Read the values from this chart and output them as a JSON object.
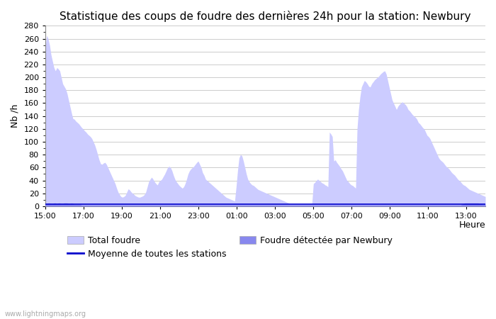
{
  "title": "Statistique des coups de foudre des dernières 24h pour la station: Newbury",
  "ylabel": "Nb /h",
  "xlabel": "Heure",
  "watermark": "www.lightningmaps.org",
  "ylim": [
    0,
    280
  ],
  "yticks": [
    0,
    20,
    40,
    60,
    80,
    100,
    120,
    140,
    160,
    180,
    200,
    220,
    240,
    260,
    280
  ],
  "xtick_labels": [
    "15:00",
    "17:00",
    "19:00",
    "21:00",
    "23:00",
    "01:00",
    "03:00",
    "05:00",
    "07:00",
    "09:00",
    "11:00",
    "13:00"
  ],
  "total_foudre_color": "#ccccff",
  "newbury_color": "#8888ee",
  "moyenne_color": "#0000cc",
  "background_color": "#ffffff",
  "grid_color": "#cccccc",
  "title_fontsize": 11,
  "axis_fontsize": 9,
  "tick_fontsize": 8,
  "legend_fontsize": 9,
  "total_foudre": [
    245,
    265,
    260,
    250,
    235,
    225,
    215,
    210,
    215,
    213,
    210,
    200,
    190,
    186,
    182,
    175,
    165,
    155,
    145,
    136,
    135,
    132,
    130,
    128,
    125,
    122,
    120,
    117,
    115,
    112,
    110,
    108,
    105,
    100,
    95,
    88,
    80,
    72,
    66,
    65,
    67,
    68,
    65,
    60,
    55,
    50,
    45,
    40,
    35,
    28,
    22,
    18,
    15,
    14,
    15,
    17,
    22,
    27,
    25,
    22,
    20,
    18,
    16,
    15,
    14,
    14,
    15,
    16,
    18,
    22,
    30,
    38,
    42,
    45,
    42,
    38,
    35,
    33,
    38,
    40,
    42,
    46,
    50,
    55,
    60,
    62,
    60,
    55,
    48,
    42,
    38,
    35,
    32,
    30,
    28,
    30,
    35,
    42,
    50,
    55,
    58,
    60,
    62,
    65,
    68,
    70,
    65,
    60,
    52,
    48,
    42,
    40,
    38,
    36,
    34,
    32,
    30,
    28,
    26,
    24,
    22,
    20,
    18,
    16,
    14,
    13,
    12,
    11,
    10,
    9,
    8,
    30,
    55,
    75,
    80,
    78,
    70,
    60,
    50,
    42,
    38,
    35,
    33,
    32,
    30,
    28,
    26,
    25,
    24,
    23,
    22,
    21,
    20,
    19,
    18,
    17,
    16,
    15,
    14,
    13,
    12,
    11,
    10,
    9,
    8,
    7,
    6,
    5,
    4,
    4,
    4,
    4,
    4,
    4,
    4,
    4,
    4,
    4,
    4,
    4,
    4,
    4,
    4,
    4,
    35,
    37,
    40,
    42,
    40,
    38,
    36,
    35,
    33,
    32,
    30,
    115,
    112,
    108,
    70,
    72,
    68,
    65,
    62,
    58,
    55,
    50,
    45,
    40,
    38,
    35,
    33,
    32,
    30,
    28,
    120,
    150,
    170,
    185,
    190,
    195,
    193,
    190,
    186,
    185,
    190,
    193,
    196,
    198,
    200,
    202,
    205,
    207,
    209,
    210,
    205,
    195,
    185,
    175,
    165,
    160,
    155,
    150,
    155,
    158,
    160,
    162,
    160,
    158,
    155,
    150,
    148,
    145,
    142,
    140,
    138,
    135,
    130,
    128,
    125,
    122,
    120,
    115,
    110,
    108,
    105,
    100,
    95,
    90,
    85,
    80,
    75,
    72,
    70,
    68,
    65,
    62,
    60,
    58,
    55,
    52,
    50,
    48,
    45,
    42,
    40,
    38,
    35,
    33,
    32,
    30,
    28,
    26,
    25,
    24,
    23,
    22,
    21,
    20,
    19,
    18,
    17,
    16,
    15
  ],
  "newbury_foudre": [
    3,
    4,
    5,
    5,
    4,
    4,
    5,
    5,
    4,
    5,
    5,
    4,
    4,
    5,
    5,
    5,
    4,
    4,
    5,
    4,
    3,
    3,
    3,
    3,
    3,
    2,
    2,
    2,
    2,
    2,
    2,
    2,
    2,
    2,
    2,
    2,
    2,
    2,
    2,
    2,
    2,
    2,
    2,
    2,
    2,
    2,
    2,
    2,
    2,
    2,
    2,
    2,
    2,
    2,
    2,
    2,
    2,
    2,
    2,
    2,
    2,
    2,
    2,
    2,
    2,
    2,
    2,
    2,
    2,
    2,
    2,
    2,
    2,
    2,
    2,
    2,
    2,
    2,
    2,
    2,
    2,
    2,
    2,
    2,
    2,
    2,
    2,
    2,
    2,
    2,
    2,
    2,
    2,
    2,
    2,
    2,
    2,
    2,
    2,
    2,
    2,
    2,
    2,
    2,
    2,
    2,
    2,
    2,
    2,
    2,
    2,
    2,
    2,
    2,
    2,
    2,
    2,
    2,
    2,
    2,
    2,
    2,
    2,
    2,
    2,
    2,
    2,
    2,
    2,
    2,
    2,
    2,
    2,
    2,
    2,
    2,
    2,
    2,
    2,
    2,
    2,
    2,
    2,
    2,
    2,
    2,
    2,
    2,
    2,
    2,
    2,
    2,
    2,
    2,
    2,
    2,
    2,
    2,
    2,
    2,
    2,
    2,
    2,
    2,
    2,
    2,
    2,
    2,
    2,
    2,
    2,
    2,
    2,
    2,
    2,
    2,
    2,
    2,
    2,
    2,
    2,
    2,
    2,
    2,
    2,
    2,
    2,
    2,
    2,
    2,
    2,
    2,
    2,
    2,
    2,
    2,
    2,
    2,
    2,
    2,
    2,
    2,
    2,
    2,
    2,
    2,
    2,
    2,
    2,
    2,
    2,
    2,
    2,
    2,
    2,
    2,
    2,
    2,
    2,
    2,
    2,
    2,
    2,
    2,
    2,
    2,
    2,
    2,
    2,
    2,
    2,
    2,
    2,
    2,
    2,
    2,
    2,
    2,
    2,
    2,
    2,
    2,
    2,
    2,
    2,
    2,
    2,
    2,
    2,
    2,
    2,
    2,
    2,
    2,
    2,
    2,
    2,
    2,
    2,
    2,
    2,
    2,
    2,
    2,
    2,
    2,
    2,
    2,
    2,
    2,
    2,
    2,
    2,
    2,
    2,
    2,
    2,
    2,
    2,
    2,
    2,
    2,
    2,
    2,
    2,
    2,
    3,
    4,
    5,
    5,
    5,
    5,
    5,
    5,
    5,
    5,
    5,
    5,
    4,
    4,
    3,
    3,
    3,
    3,
    3,
    3,
    3,
    3,
    2,
    2,
    2,
    2,
    2,
    2,
    2,
    2,
    2,
    2,
    2,
    2,
    2,
    2,
    2,
    2,
    2,
    2,
    2,
    2,
    2,
    2,
    2,
    2,
    2,
    2,
    2,
    2,
    2,
    2,
    2,
    2,
    2,
    2,
    2,
    2,
    2,
    2,
    2,
    2,
    2,
    2,
    2,
    2,
    2,
    2,
    2
  ],
  "moyenne": [
    3,
    3,
    3,
    3,
    3,
    3,
    3,
    3,
    3,
    3,
    3,
    3,
    3,
    3,
    3,
    3,
    3,
    3,
    3,
    3,
    3,
    3,
    3,
    3,
    3,
    3,
    3,
    3,
    3,
    3,
    3,
    3,
    3,
    3,
    3,
    3,
    3,
    3,
    3,
    3,
    3,
    3,
    3,
    3,
    3,
    3,
    3,
    3,
    3,
    3,
    3,
    3,
    3,
    3,
    3,
    3,
    3,
    3,
    3,
    3,
    3,
    3,
    3,
    3,
    3,
    3,
    3,
    3,
    3,
    3,
    3,
    3,
    3,
    3,
    3,
    3,
    3,
    3,
    3,
    3,
    3,
    3,
    3,
    3,
    3,
    3,
    3,
    3,
    3,
    3,
    3,
    3,
    3,
    3,
    3,
    3,
    3,
    3,
    3,
    3,
    3,
    3,
    3,
    3,
    3,
    3,
    3,
    3,
    3,
    3,
    3,
    3,
    3,
    3,
    3,
    3,
    3,
    3,
    3,
    3,
    3,
    3,
    3,
    3,
    3,
    3,
    3,
    3,
    3,
    3,
    3,
    3,
    3,
    3,
    3,
    3,
    3,
    3,
    3,
    3,
    3,
    3,
    3,
    3,
    3,
    3,
    3,
    3,
    3,
    3,
    3,
    3,
    3,
    3,
    3,
    3,
    3,
    3,
    3,
    3,
    3,
    3,
    3,
    3,
    3,
    3,
    3,
    3,
    3,
    3,
    3,
    3,
    3,
    3,
    3,
    3,
    3,
    3,
    3,
    3,
    3,
    3,
    3,
    3,
    3,
    3,
    3,
    3,
    3,
    3,
    3,
    3,
    3,
    3,
    3,
    3,
    3,
    3,
    3,
    3,
    3,
    3,
    3,
    3,
    3,
    3,
    3,
    3,
    3,
    3,
    3,
    3,
    3,
    3,
    3,
    3,
    3,
    3,
    3,
    3,
    3,
    3,
    3,
    3,
    3,
    3,
    3,
    3,
    3,
    3,
    3,
    3,
    3,
    3,
    3,
    3,
    3,
    3,
    3,
    3,
    3,
    3,
    3,
    3,
    3,
    3,
    3,
    3,
    3,
    3,
    3,
    3,
    3,
    3,
    3,
    3,
    3,
    3,
    3,
    3,
    3,
    3,
    3,
    3,
    3,
    3,
    3,
    3,
    3,
    3,
    3,
    3,
    3,
    3,
    3,
    3,
    3,
    3,
    3,
    3,
    3,
    3,
    3,
    3,
    3,
    3,
    3,
    3,
    3,
    3,
    3,
    3,
    3,
    3,
    3,
    3,
    3,
    3,
    3,
    3,
    3,
    3,
    3,
    3,
    3,
    3,
    3,
    3,
    3,
    3,
    3,
    3,
    3,
    3,
    3,
    3,
    3,
    3,
    3,
    3,
    3,
    3,
    3,
    3,
    3,
    3,
    3,
    3,
    3,
    3,
    3,
    3,
    3,
    3,
    3,
    3,
    3,
    3,
    3,
    3,
    3,
    3,
    3,
    3,
    3,
    3,
    3,
    3,
    3,
    3,
    3,
    3,
    3,
    3,
    3
  ]
}
